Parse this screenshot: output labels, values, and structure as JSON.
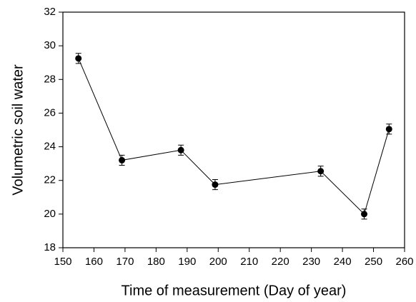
{
  "chart_data": {
    "type": "line",
    "x_label": "Time of measurement (Day of year)",
    "y_label": "Volumetric soil water",
    "x": [
      155,
      169,
      188,
      199,
      233,
      247,
      255
    ],
    "series": [
      {
        "color": "#000000",
        "values": [
          29.25,
          23.2,
          23.8,
          21.75,
          22.55,
          20.0,
          25.05
        ],
        "errors": [
          0.3,
          0.3,
          0.3,
          0.3,
          0.3,
          0.3,
          0.3
        ]
      }
    ],
    "xlim": [
      150,
      260
    ],
    "xticks": [
      150,
      160,
      170,
      180,
      190,
      200,
      210,
      220,
      230,
      240,
      250,
      260
    ],
    "ylim": [
      18,
      32
    ],
    "yticks": [
      18,
      20,
      22,
      24,
      26,
      28,
      30,
      32
    ]
  }
}
